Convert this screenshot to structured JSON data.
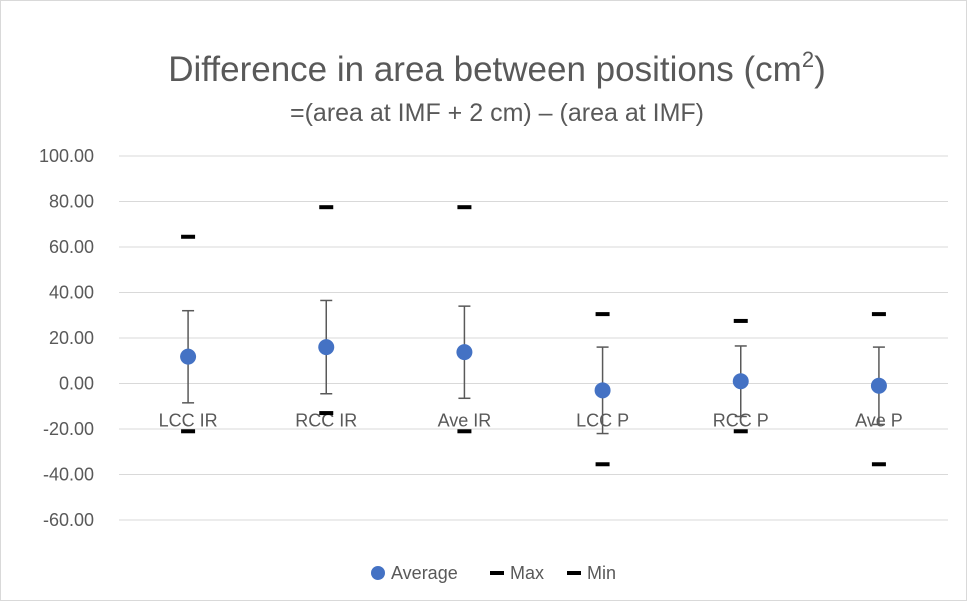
{
  "chart_data": {
    "type": "scatter",
    "title": "Difference in area between positions (cm",
    "title_superscript": "2",
    "title_close": ")",
    "subtitle": "=(area at IMF + 2 cm) – (area at IMF)",
    "categories": [
      "LCC IR",
      "RCC IR",
      "Ave IR",
      "LCC P",
      "RCC P",
      "Ave P"
    ],
    "y_tick_labels": [
      "100.00",
      "80.00",
      "60.00",
      "40.00",
      "20.00",
      "0.00",
      "-20.00",
      "-40.00",
      "-60.00"
    ],
    "ylim": [
      -60,
      100
    ],
    "grid": true,
    "legend_position": "bottom",
    "series": [
      {
        "name": "Average",
        "marker": "circle",
        "color": "#4472c4",
        "values": [
          11.8,
          16.0,
          13.8,
          -3.0,
          1.0,
          -1.0
        ]
      },
      {
        "name": "Max",
        "marker": "dash",
        "color": "#000000",
        "values": [
          64.5,
          77.5,
          77.5,
          30.5,
          27.5,
          30.5
        ]
      },
      {
        "name": "Min",
        "marker": "dash",
        "color": "#000000",
        "values": [
          -21.0,
          -13.0,
          -21.0,
          -35.5,
          -21.0,
          -35.5
        ]
      }
    ],
    "error_bars": {
      "color": "#595959",
      "upper": [
        32.0,
        36.5,
        34.0,
        16.0,
        16.5,
        16.0
      ],
      "lower": [
        -8.5,
        -4.5,
        -6.5,
        -22.0,
        -14.5,
        -18.0
      ]
    }
  }
}
